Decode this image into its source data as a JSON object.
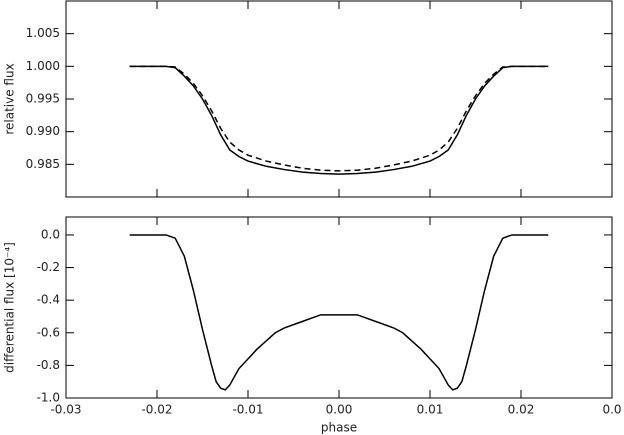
{
  "chart_data": [
    {
      "type": "line",
      "ylabel": "relative flux",
      "x": [
        -0.023,
        -0.019,
        -0.018,
        -0.017,
        -0.016,
        -0.015,
        -0.014,
        -0.013,
        -0.012,
        -0.011,
        -0.01,
        -0.008,
        -0.006,
        -0.004,
        -0.002,
        0,
        0.002,
        0.004,
        0.006,
        0.008,
        0.01,
        0.011,
        0.012,
        0.013,
        0.014,
        0.015,
        0.016,
        0.017,
        0.018,
        0.019,
        0.023
      ],
      "series": [
        {
          "color": "#000000",
          "linestyle": "solid",
          "values": [
            1.0,
            1.0,
            0.9998,
            0.9985,
            0.997,
            0.995,
            0.9925,
            0.9895,
            0.9872,
            0.9862,
            0.9855,
            0.9847,
            0.9842,
            0.9838,
            0.9836,
            0.9835,
            0.9836,
            0.9838,
            0.9842,
            0.9847,
            0.9855,
            0.9862,
            0.9872,
            0.9895,
            0.9925,
            0.995,
            0.997,
            0.9985,
            0.9998,
            1.0,
            1.0
          ]
        },
        {
          "color": "#000000",
          "linestyle": "dashed",
          "values": [
            1.0,
            1.0,
            0.9999,
            0.9988,
            0.9974,
            0.9955,
            0.9932,
            0.9905,
            0.9884,
            0.9872,
            0.9864,
            0.9855,
            0.9849,
            0.9844,
            0.9841,
            0.984,
            0.9841,
            0.9844,
            0.9849,
            0.9855,
            0.9864,
            0.9872,
            0.9884,
            0.9905,
            0.9932,
            0.9955,
            0.9974,
            0.9988,
            0.9999,
            1.0,
            1.0
          ]
        }
      ],
      "xlim": [
        -0.03,
        0.03
      ],
      "ylim": [
        0.98,
        1.01
      ],
      "yticks": [
        0.985,
        {
          "value": 0.99,
          "label": "0.990"
        },
        0.995,
        {
          "value": 1,
          "label": "1.000"
        },
        1.005
      ]
    },
    {
      "type": "line",
      "xlabel": "phase",
      "ylabel": "differential flux [10⁻⁴]",
      "x": [
        -0.023,
        -0.019,
        -0.018,
        -0.017,
        -0.016,
        -0.015,
        -0.014,
        -0.0135,
        -0.013,
        -0.0125,
        -0.012,
        -0.011,
        -0.01,
        -0.009,
        -0.008,
        -0.007,
        -0.006,
        -0.005,
        -0.004,
        -0.003,
        -0.002,
        -0.001,
        0,
        0.001,
        0.002,
        0.003,
        0.004,
        0.005,
        0.006,
        0.007,
        0.008,
        0.009,
        0.01,
        0.011,
        0.012,
        0.0125,
        0.013,
        0.0135,
        0.014,
        0.015,
        0.016,
        0.017,
        0.018,
        0.019,
        0.023
      ],
      "series": [
        {
          "color": "#000000",
          "linestyle": "solid",
          "values": [
            0,
            0,
            -0.02,
            -0.13,
            -0.34,
            -0.58,
            -0.8,
            -0.9,
            -0.94,
            -0.95,
            -0.92,
            -0.82,
            -0.76,
            -0.7,
            -0.65,
            -0.6,
            -0.57,
            -0.55,
            -0.53,
            -0.51,
            -0.49,
            -0.49,
            -0.49,
            -0.49,
            -0.49,
            -0.51,
            -0.53,
            -0.55,
            -0.57,
            -0.6,
            -0.65,
            -0.7,
            -0.76,
            -0.82,
            -0.92,
            -0.95,
            -0.94,
            -0.9,
            -0.8,
            -0.58,
            -0.34,
            -0.13,
            -0.02,
            0,
            0
          ]
        }
      ],
      "xlim": [
        -0.03,
        0.03
      ],
      "xticks": [
        -0.03,
        -0.02,
        -0.01,
        {
          "value": 0,
          "label": "0.00"
        },
        0.01,
        0.02,
        {
          "value": 0.03,
          "label": "0.0"
        }
      ],
      "ylim": [
        -1.0,
        0.11
      ],
      "yticks": [
        {
          "value": -1,
          "label": "-1.0"
        },
        -0.8,
        -0.6,
        -0.4,
        -0.2,
        {
          "value": 0,
          "label": "0.0"
        }
      ]
    }
  ]
}
